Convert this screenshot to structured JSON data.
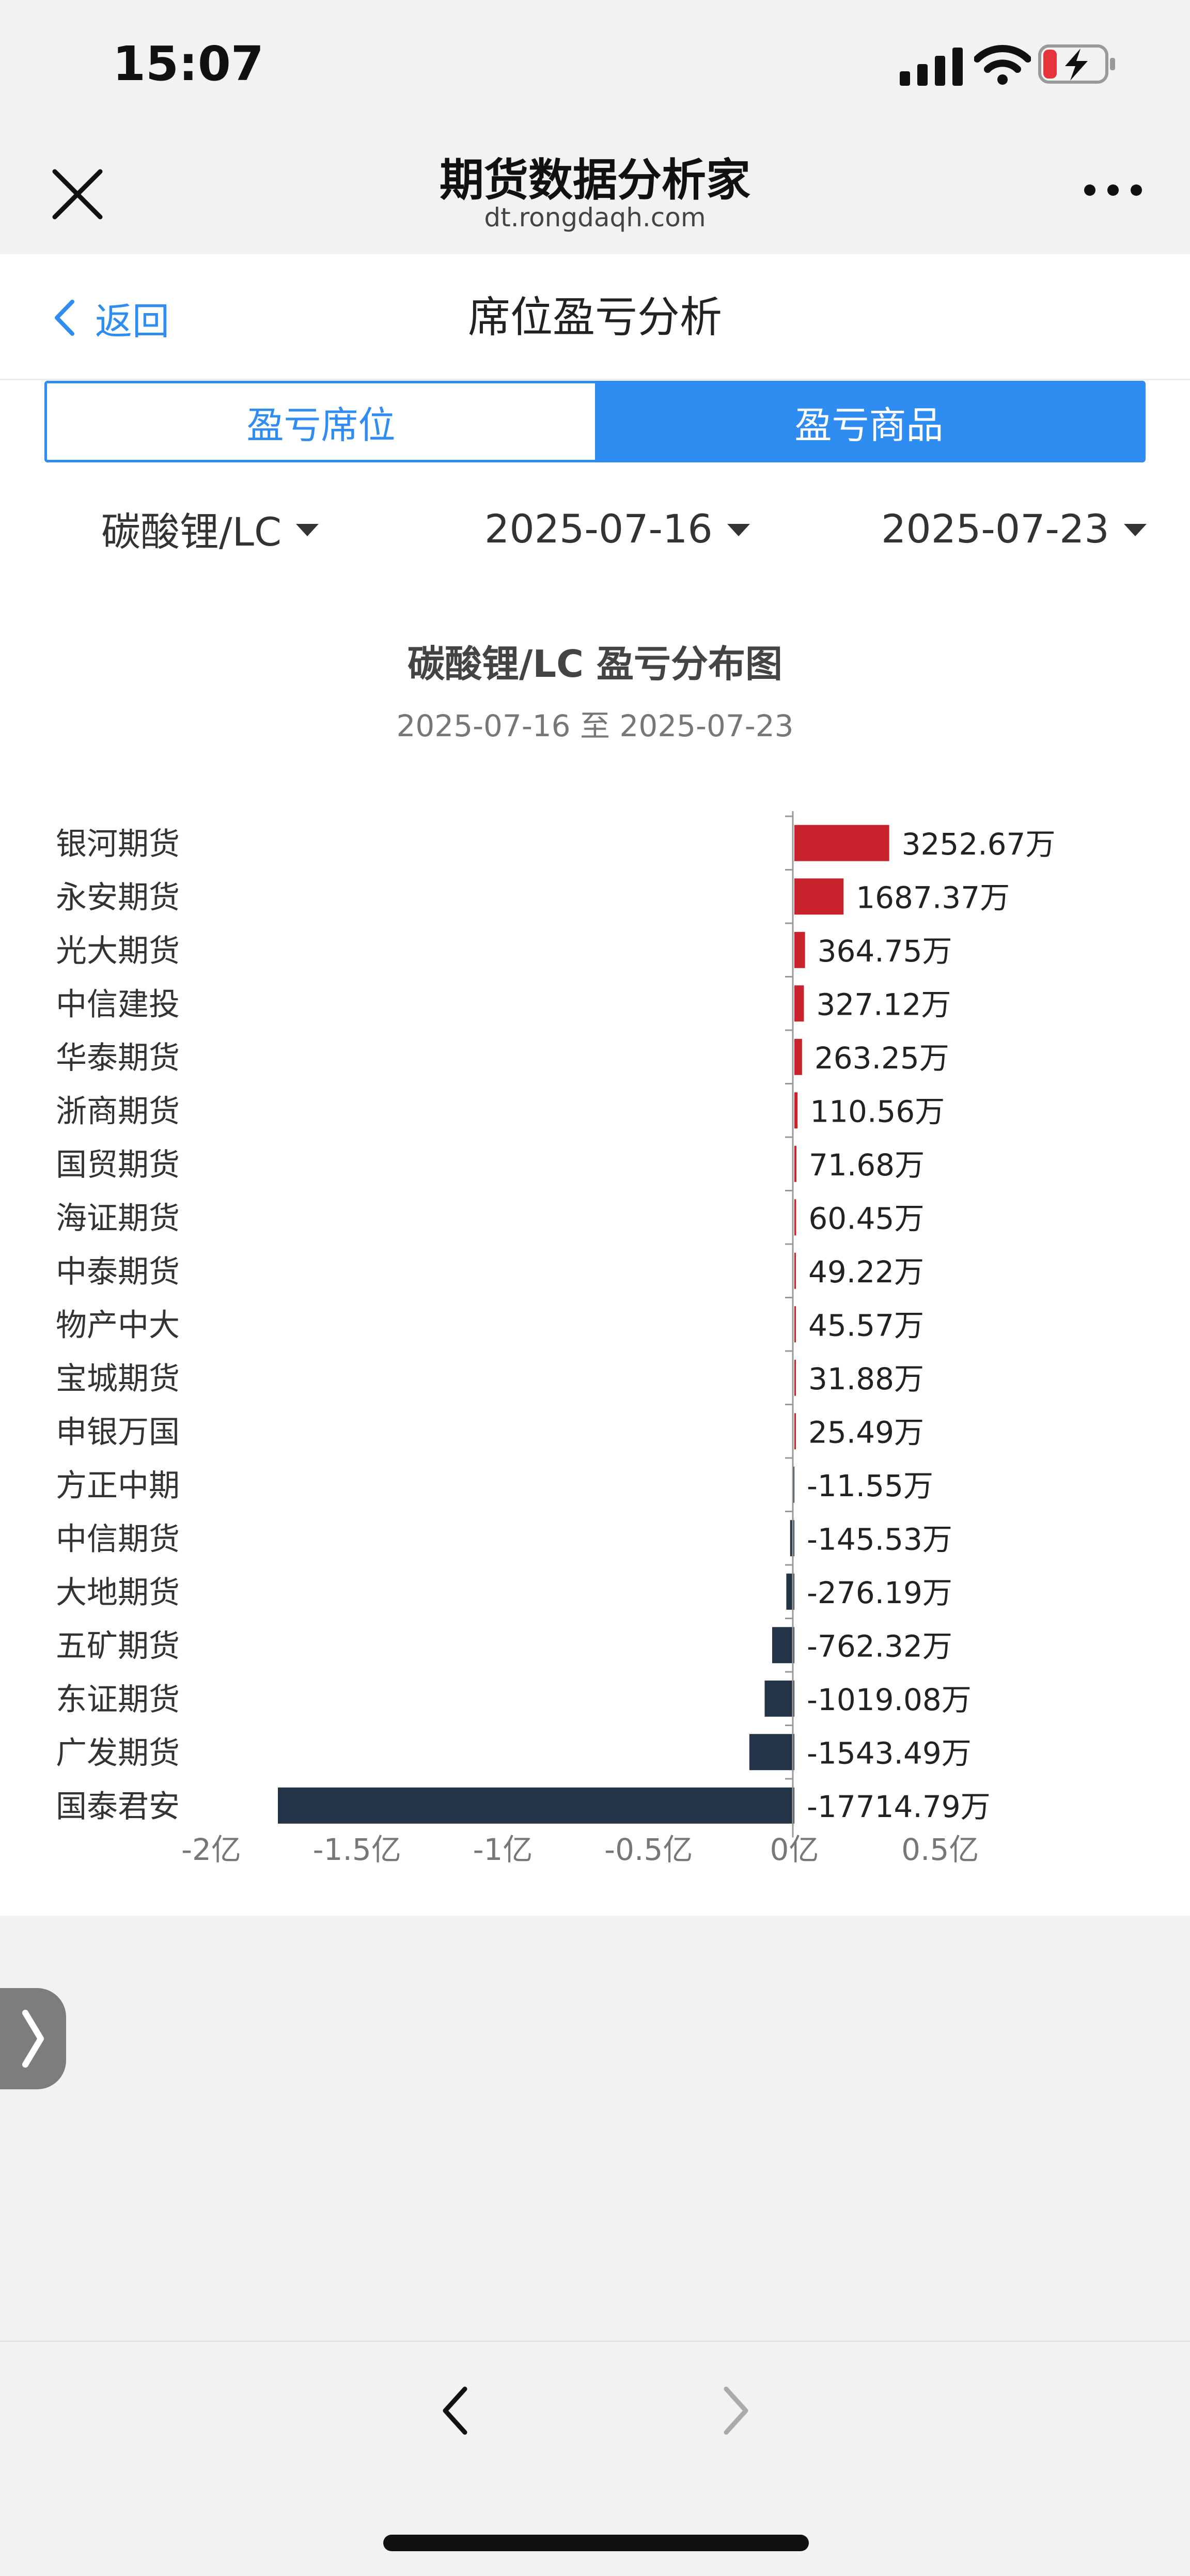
{
  "status_bar": {
    "time": "15:07"
  },
  "header": {
    "title": "期货数据分析家",
    "url": "dt.rongdaqh.com"
  },
  "nav": {
    "back_label": "返回",
    "page_title": "席位盈亏分析"
  },
  "tabs": [
    {
      "label": "盈亏席位",
      "active": false
    },
    {
      "label": "盈亏商品",
      "active": true
    }
  ],
  "filters": {
    "commodity": "碳酸锂/LC",
    "start_date": "2025-07-16",
    "end_date": "2025-07-23"
  },
  "colors": {
    "accent": "#2f8cf0",
    "positive_bar": "#c8232c",
    "negative_bar": "#233446"
  },
  "chart_data": {
    "type": "bar",
    "orientation": "horizontal",
    "title": "碳酸锂/LC 盈亏分布图",
    "subtitle": "2025-07-16 至 2025-07-23",
    "unit_suffix": "万",
    "categories": [
      "银河期货",
      "永安期货",
      "光大期货",
      "中信建投",
      "华泰期货",
      "浙商期货",
      "国贸期货",
      "海证期货",
      "中泰期货",
      "物产中大",
      "宝城期货",
      "申银万国",
      "方正中期",
      "中信期货",
      "大地期货",
      "五矿期货",
      "东证期货",
      "广发期货",
      "国泰君安"
    ],
    "values": [
      3252.67,
      1687.37,
      364.75,
      327.12,
      263.25,
      110.56,
      71.68,
      60.45,
      49.22,
      45.57,
      31.88,
      25.49,
      -11.55,
      -145.53,
      -276.19,
      -762.32,
      -1019.08,
      -1543.49,
      -17714.79
    ],
    "value_labels": [
      "3252.67万",
      "1687.37万",
      "364.75万",
      "327.12万",
      "263.25万",
      "110.56万",
      "71.68万",
      "60.45万",
      "49.22万",
      "45.57万",
      "31.88万",
      "25.49万",
      "-11.55万",
      "-145.53万",
      "-276.19万",
      "-762.32万",
      "-1019.08万",
      "-1543.49万",
      "-17714.79万"
    ],
    "xlim": [
      -20000,
      5000
    ],
    "x_ticks": [
      -20000,
      -15000,
      -10000,
      -5000,
      0,
      5000
    ],
    "x_tick_labels": [
      "-2亿",
      "-1.5亿",
      "-1亿",
      "-0.5亿",
      "0亿",
      "0.5亿"
    ],
    "legend": "none",
    "grid": false
  }
}
